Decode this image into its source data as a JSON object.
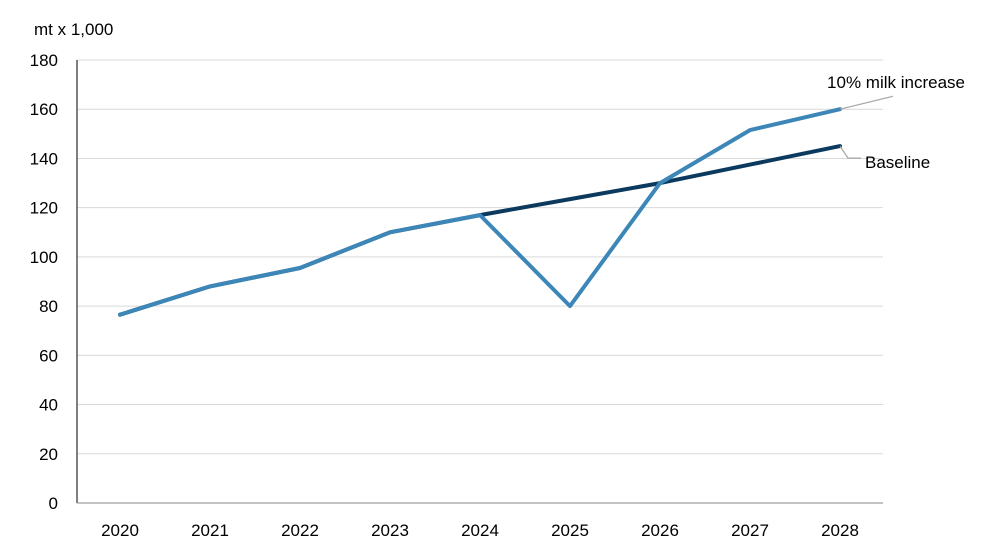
{
  "chart_data": {
    "type": "line",
    "title": "",
    "xlabel": "",
    "ylabel": "mt x 1,000",
    "categories": [
      "2020",
      "2021",
      "2022",
      "2023",
      "2024",
      "2025",
      "2026",
      "2027",
      "2028"
    ],
    "ylim": [
      0,
      180
    ],
    "yticks": [
      0,
      20,
      40,
      60,
      80,
      100,
      120,
      140,
      160,
      180
    ],
    "grid": "horizontal",
    "series": [
      {
        "name": "Baseline",
        "color": "#0b3a5e",
        "values": [
          76.5,
          88,
          95.5,
          110,
          117,
          123.5,
          130,
          137.5,
          145
        ]
      },
      {
        "name": "10% milk increase",
        "color": "#3d87b8",
        "values": [
          76.5,
          88,
          95.5,
          110,
          117,
          80,
          130,
          151.5,
          160
        ]
      }
    ]
  }
}
